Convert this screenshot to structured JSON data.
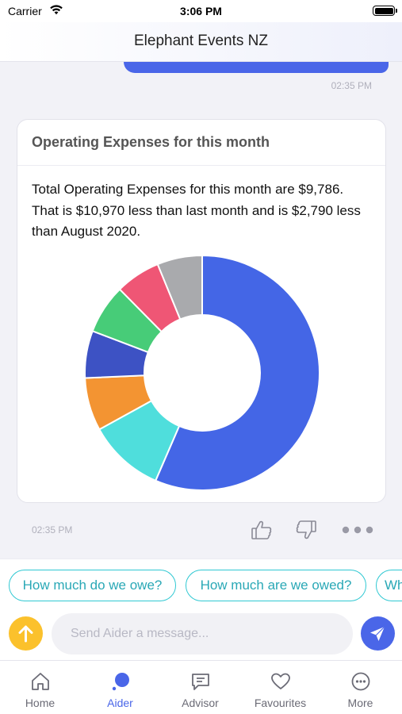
{
  "status_bar": {
    "carrier": "Carrier",
    "time": "3:06 PM"
  },
  "header": {
    "title": "Elephant Events NZ"
  },
  "previous_message": {
    "time": "02:35 PM"
  },
  "card": {
    "title": "Operating Expenses for this month",
    "body": "Total Operating Expenses for this month are $9,786. That is $10,970 less than last month and is $2,790 less than August 2020."
  },
  "chart_data": {
    "type": "pie",
    "donut": true,
    "values": [
      56.5,
      10.5,
      7.3,
      6.5,
      6.8,
      6.2,
      6.2
    ],
    "colors": [
      "#4466e6",
      "#4fdedc",
      "#f39432",
      "#3d52c4",
      "#47cc78",
      "#ef5675",
      "#a9aaad"
    ],
    "start_angle_deg": 0,
    "direction": "clockwise"
  },
  "message_footer": {
    "time": "02:35 PM"
  },
  "suggestions": [
    {
      "label": "How much do we owe?"
    },
    {
      "label": "How much are we owed?"
    },
    {
      "label": "Wh"
    }
  ],
  "composer": {
    "placeholder": "Send Aider a message..."
  },
  "tabs": [
    {
      "label": "Home",
      "icon": "home-icon"
    },
    {
      "label": "Aider",
      "icon": "aider-icon",
      "active": true
    },
    {
      "label": "Advisor",
      "icon": "chat-icon"
    },
    {
      "label": "Favourites",
      "icon": "heart-icon"
    },
    {
      "label": "More",
      "icon": "more-icon"
    }
  ],
  "colors": {
    "accent": "#4a66e8",
    "chip": "#2fc8d2",
    "action": "#fbc12c"
  }
}
